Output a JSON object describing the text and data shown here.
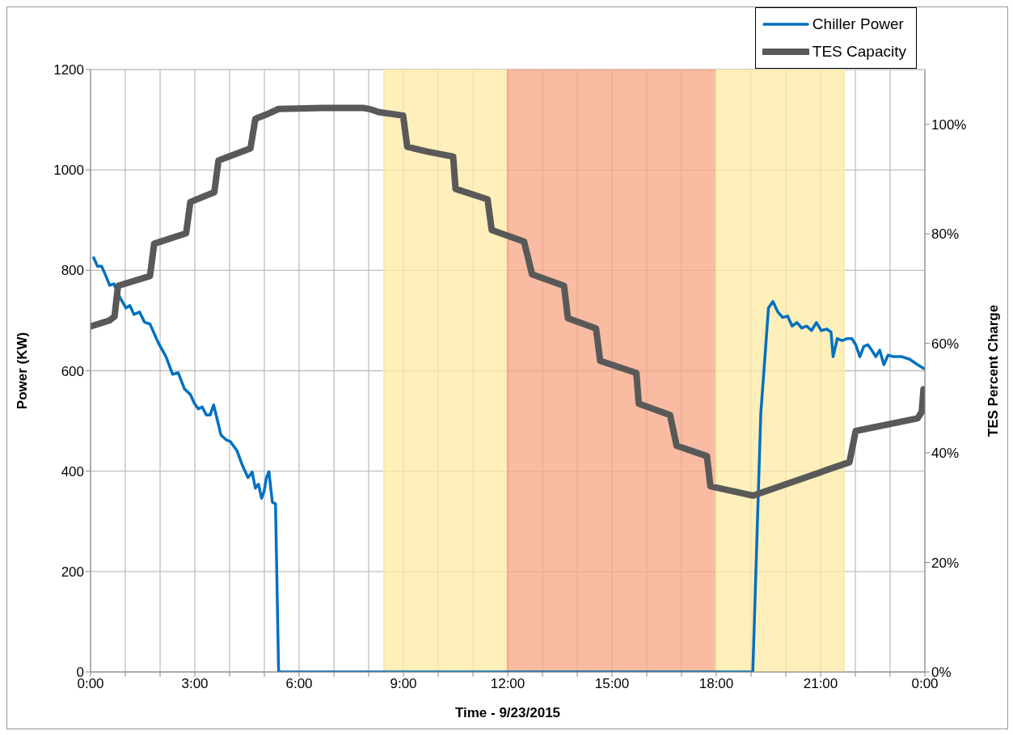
{
  "chart_data": {
    "type": "line",
    "xlabel": "Time - 9/23/2015",
    "ylabel": "Power (KW)",
    "y2label": "TES Percent Charge",
    "xlim": [
      0,
      24
    ],
    "xticks": [
      {
        "value": 0,
        "label": "0:00"
      },
      {
        "value": 1,
        "label": null
      },
      {
        "value": 2,
        "label": null
      },
      {
        "value": 3,
        "label": "3:00"
      },
      {
        "value": 4,
        "label": null
      },
      {
        "value": 5,
        "label": null
      },
      {
        "value": 6,
        "label": "6:00"
      },
      {
        "value": 7,
        "label": null
      },
      {
        "value": 8,
        "label": null
      },
      {
        "value": 9,
        "label": "9:00"
      },
      {
        "value": 10,
        "label": null
      },
      {
        "value": 11,
        "label": null
      },
      {
        "value": 12,
        "label": "12:00"
      },
      {
        "value": 13,
        "label": null
      },
      {
        "value": 14,
        "label": null
      },
      {
        "value": 15,
        "label": "15:00"
      },
      {
        "value": 16,
        "label": null
      },
      {
        "value": 17,
        "label": null
      },
      {
        "value": 18,
        "label": "18:00"
      },
      {
        "value": 19,
        "label": null
      },
      {
        "value": 20,
        "label": null
      },
      {
        "value": 21,
        "label": "21:00"
      },
      {
        "value": 22,
        "label": null
      },
      {
        "value": 23,
        "label": null
      },
      {
        "value": 24,
        "label": "0:00"
      }
    ],
    "ylim": [
      0,
      1200
    ],
    "yticks": [
      0,
      200,
      400,
      600,
      800,
      1000,
      1200
    ],
    "y2lim": [
      0,
      110
    ],
    "y2ticks": [
      {
        "value": 0,
        "label": "0%"
      },
      {
        "value": 20,
        "label": "20%"
      },
      {
        "value": 40,
        "label": "40%"
      },
      {
        "value": 60,
        "label": "60%"
      },
      {
        "value": 80,
        "label": "80%"
      },
      {
        "value": 100,
        "label": "100%"
      }
    ],
    "grid": true,
    "legend": "top right",
    "marker": "none",
    "bands": [
      {
        "axis": "x",
        "from": 8.44,
        "to": 12,
        "color": "#fde9a4"
      },
      {
        "axis": "x",
        "from": 12,
        "to": 18,
        "color": "#f7a482"
      },
      {
        "axis": "x",
        "from": 18,
        "to": 21.67,
        "color": "#fde9a4"
      }
    ],
    "series": [
      {
        "name": "Chiller Power",
        "color": "#0070c0",
        "x": [
          0.09,
          0.2,
          0.32,
          0.44,
          0.55,
          0.67,
          0.86,
          1.02,
          1.13,
          1.25,
          1.41,
          1.55,
          1.71,
          1.94,
          2.17,
          2.36,
          2.52,
          2.7,
          2.87,
          2.98,
          3.1,
          3.21,
          3.33,
          3.44,
          3.54,
          3.63,
          3.75,
          3.91,
          4.02,
          4.21,
          4.37,
          4.53,
          4.65,
          4.74,
          4.83,
          4.92,
          4.99,
          5.06,
          5.13,
          5.23,
          5.32,
          5.41,
          8,
          12,
          16,
          19.05,
          19.28,
          19.4,
          19.5,
          19.63,
          19.77,
          19.91,
          20.05,
          20.18,
          20.32,
          20.46,
          20.6,
          20.74,
          20.88,
          21.02,
          21.18,
          21.3,
          21.36,
          21.48,
          21.62,
          21.76,
          21.9,
          22.01,
          22.13,
          22.24,
          22.36,
          22.47,
          22.59,
          22.7,
          22.82,
          22.94,
          23.1,
          23.33,
          23.56,
          23.79,
          23.98
        ],
        "values": [
          825,
          808,
          808,
          789,
          770,
          773,
          744,
          725,
          730,
          712,
          717,
          697,
          693,
          657,
          628,
          593,
          596,
          564,
          553,
          536,
          524,
          528,
          512,
          512,
          532,
          507,
          472,
          462,
          459,
          441,
          411,
          387,
          398,
          366,
          374,
          346,
          359,
          387,
          399,
          338,
          335,
          0,
          0,
          0,
          0,
          0,
          515,
          628,
          725,
          738,
          717,
          706,
          709,
          689,
          696,
          685,
          689,
          680,
          696,
          680,
          683,
          677,
          628,
          664,
          660,
          664,
          664,
          652,
          628,
          648,
          652,
          641,
          628,
          641,
          612,
          631,
          628,
          628,
          623,
          612,
          604
        ]
      },
      {
        "name": "TES Capacity",
        "color": "#595959",
        "axis": "y2",
        "x": [
          0,
          0.55,
          0.69,
          0.79,
          1.71,
          1.83,
          2.75,
          2.87,
          3.56,
          3.68,
          4.6,
          4.74,
          5.06,
          5.41,
          6.68,
          7.84,
          8.07,
          8.3,
          8.99,
          9.11,
          9.7,
          10.43,
          10.5,
          11.42,
          11.54,
          12.47,
          12.7,
          13.62,
          13.73,
          14.54,
          14.66,
          15.7,
          15.77,
          16.67,
          16.86,
          17.73,
          17.83,
          19.05,
          21.83,
          22.01,
          23.79,
          23.91,
          23.96
        ],
        "values": [
          63.1,
          64.2,
          64.9,
          70.5,
          72.3,
          78.2,
          80.1,
          85.8,
          87.6,
          93.4,
          95.6,
          101.0,
          101.8,
          102.8,
          103.0,
          103.0,
          102.7,
          102.2,
          101.6,
          95.9,
          95.0,
          94.1,
          88.2,
          86.3,
          80.7,
          78.6,
          72.6,
          70.5,
          64.6,
          62.7,
          56.8,
          54.6,
          49.0,
          46.9,
          41.3,
          39.4,
          33.9,
          32.2,
          38.3,
          44.0,
          46.3,
          47.5,
          51.6
        ]
      }
    ]
  }
}
